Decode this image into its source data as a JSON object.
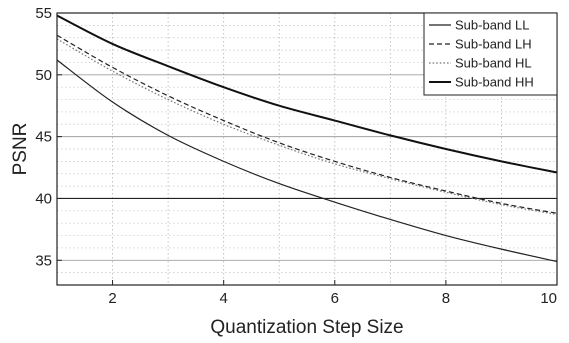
{
  "chart_data": {
    "type": "line",
    "title": "",
    "xlabel": "Quantization Step Size",
    "ylabel": "PSNR",
    "xlim": [
      1,
      10
    ],
    "ylim": [
      33,
      55
    ],
    "xticks": [
      2,
      4,
      6,
      8,
      10
    ],
    "yticks": [
      35,
      40,
      45,
      50,
      55
    ],
    "grid": true,
    "legend_position": "top-right",
    "x": [
      1,
      2,
      3,
      4,
      5,
      6,
      7,
      8,
      9,
      10
    ],
    "series": [
      {
        "name": "Sub-band LL",
        "style": "solid",
        "color": "#222222",
        "width": 1.2,
        "values": [
          51.2,
          47.8,
          45.1,
          43.0,
          41.2,
          39.7,
          38.3,
          37.0,
          35.9,
          34.9
        ]
      },
      {
        "name": "Sub-band LH",
        "style": "dashed",
        "color": "#222222",
        "width": 1.2,
        "values": [
          53.2,
          50.6,
          48.3,
          46.3,
          44.5,
          43.0,
          41.7,
          40.6,
          39.6,
          38.8
        ]
      },
      {
        "name": "Sub-band HL",
        "style": "dotted",
        "color": "#777777",
        "width": 1.2,
        "values": [
          52.9,
          50.3,
          48.0,
          46.0,
          44.3,
          42.8,
          41.6,
          40.5,
          39.5,
          38.7
        ]
      },
      {
        "name": "Sub-band HH",
        "style": "solid",
        "color": "#111111",
        "width": 2.0,
        "values": [
          54.8,
          52.5,
          50.7,
          49.0,
          47.5,
          46.3,
          45.1,
          44.0,
          43.0,
          42.1
        ]
      }
    ],
    "reference_line": {
      "y": 40
    }
  }
}
